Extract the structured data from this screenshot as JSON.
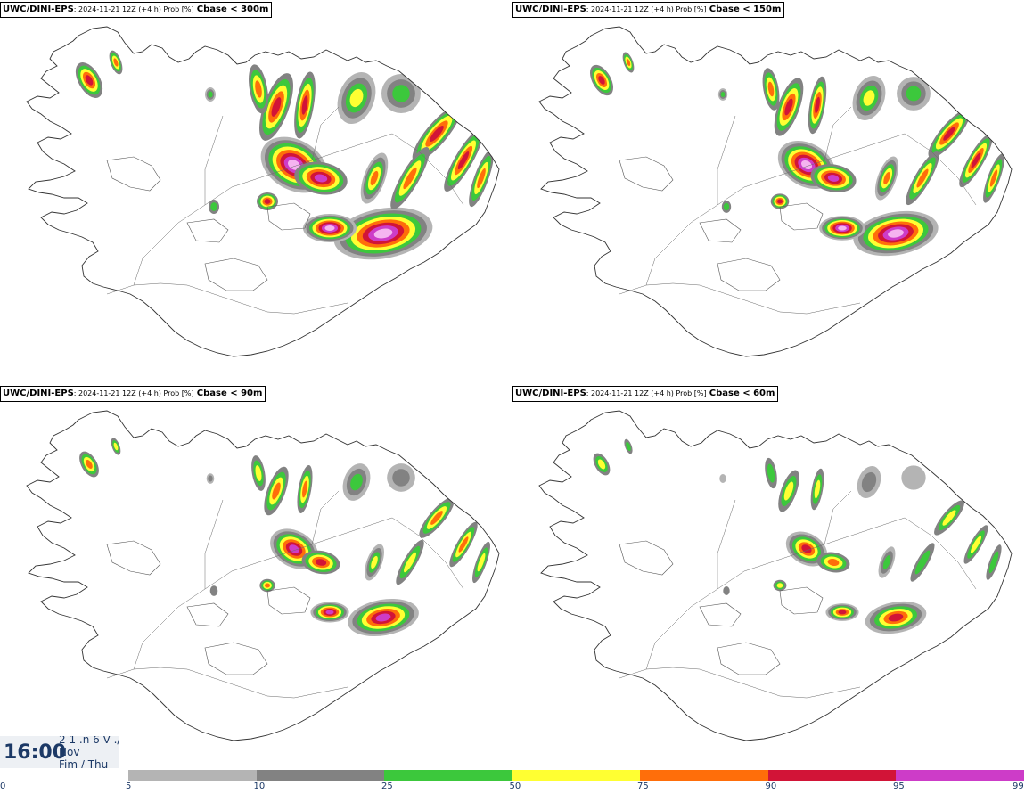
{
  "panels": [
    {
      "model": "UWC/DINI-EPS",
      "meta": ": 2024-11-21 12Z (+4 h) Prob [%]",
      "variable": "Cbase < 300m",
      "level": 4
    },
    {
      "model": "UWC/DINI-EPS",
      "meta": ": 2024-11-21 12Z (+4 h) Prob [%]",
      "variable": "Cbase < 150m",
      "level": 3
    },
    {
      "model": "UWC/DINI-EPS",
      "meta": ": 2024-11-21 12Z (+4 h) Prob [%]",
      "variable": "Cbase < 90m",
      "level": 2
    },
    {
      "model": "UWC/DINI-EPS",
      "meta": ": 2024-11-21 12Z (+4 h) Prob [%]",
      "variable": "Cbase < 60m",
      "level": 1
    }
  ],
  "timestamp": {
    "time": "16:00",
    "line1": "2 1 .n 6 V ./",
    "line2": "Nov",
    "line3": "Fim / Thu"
  },
  "legend": {
    "ticks": [
      "0",
      "5",
      "10",
      "25",
      "50",
      "75",
      "90",
      "95",
      "99"
    ],
    "colors": [
      "#ffffff",
      "#b4b4b4",
      "#828282",
      "#3cc83c",
      "#ffff32",
      "#ff6e0a",
      "#d21437",
      "#cd3cc8",
      "#f5b4f0"
    ]
  }
}
